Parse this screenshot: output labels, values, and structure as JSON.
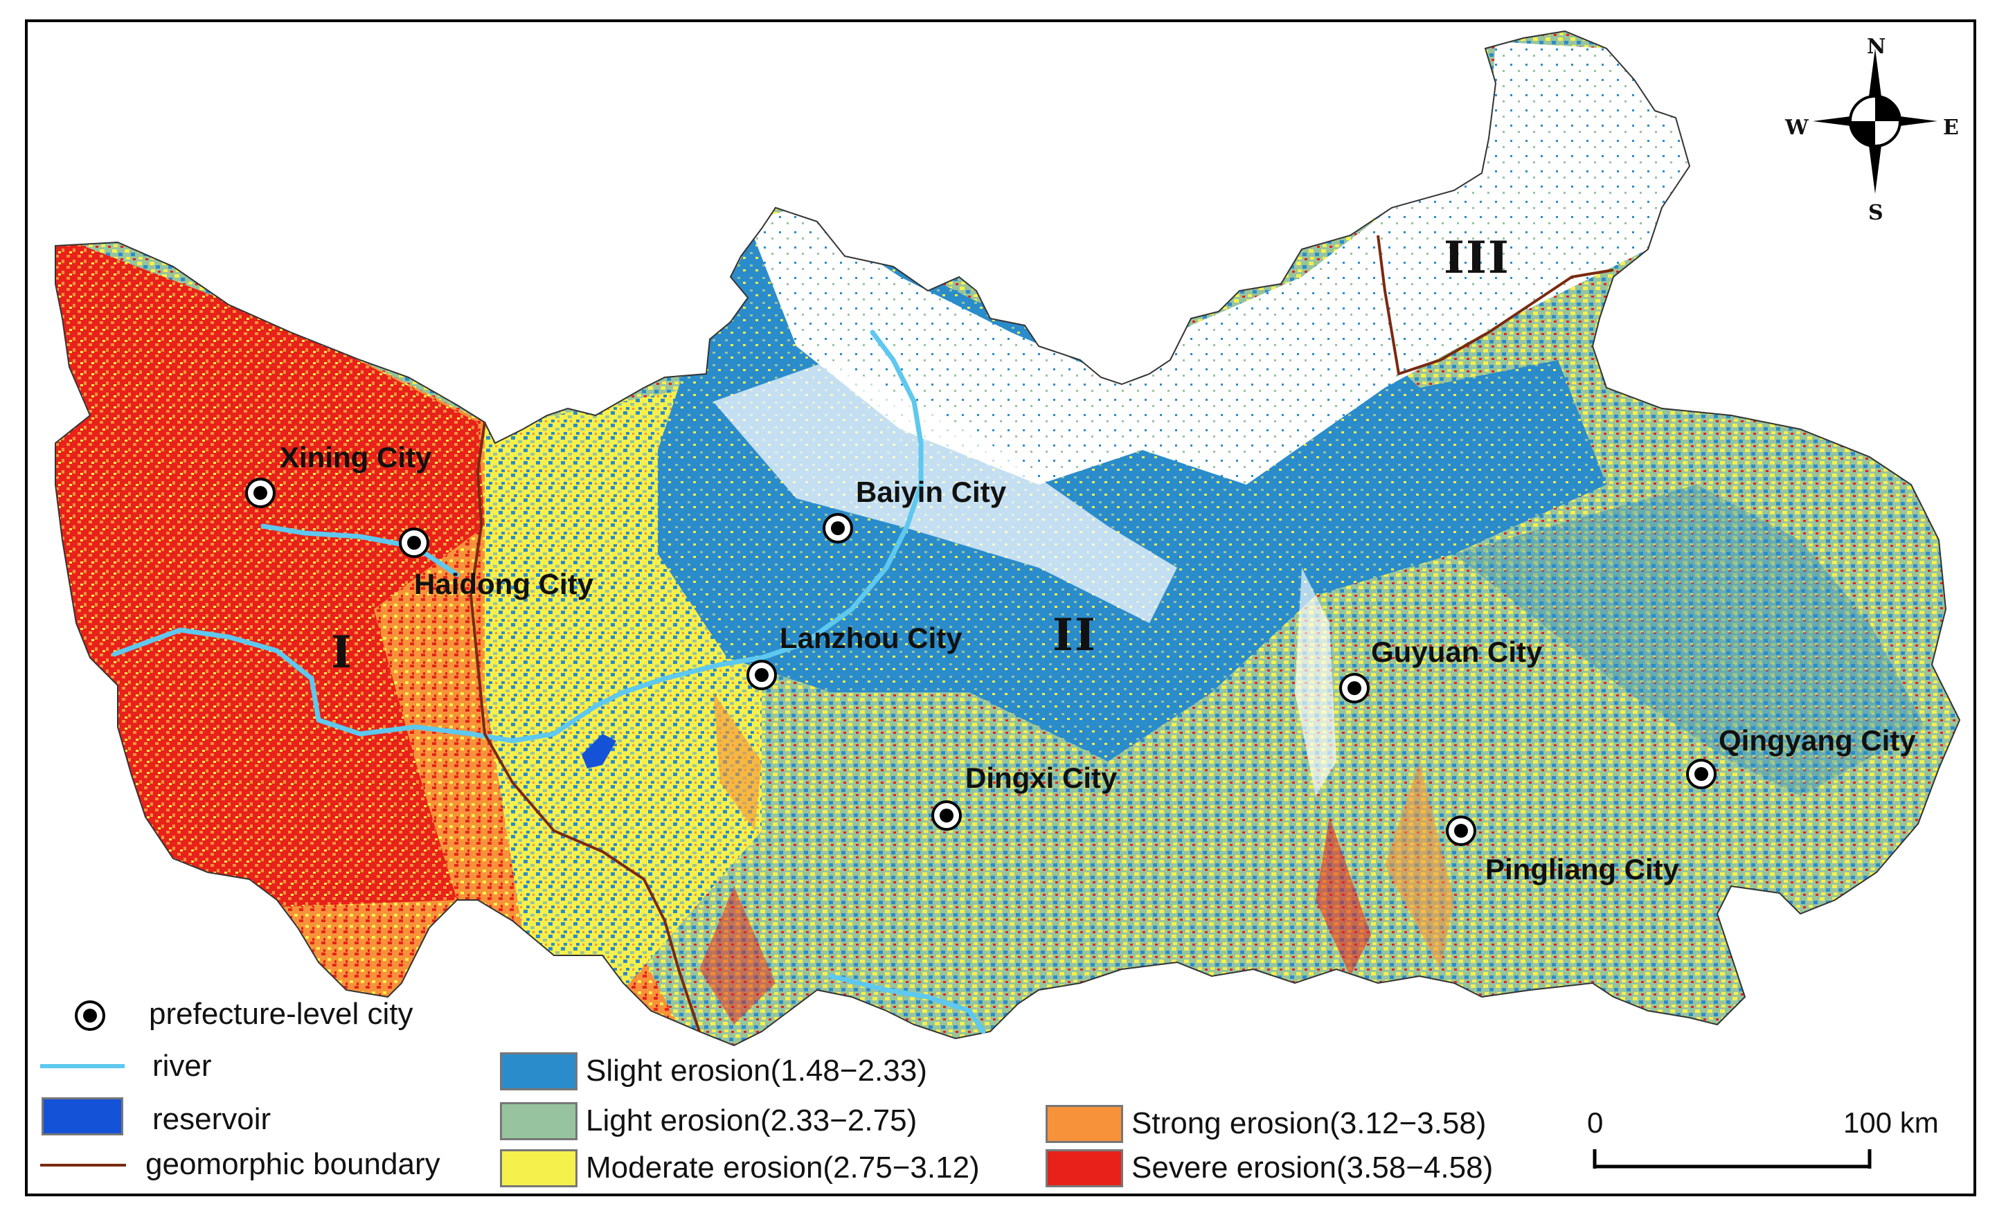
{
  "colors": {
    "slight": "#2b8ccb",
    "light": "#97c49e",
    "moderate": "#f6f04c",
    "strong": "#f7923a",
    "severe": "#e8211a",
    "river": "#5ec8ef",
    "reservoir": "#1452d8",
    "boundary": "#7a2a10"
  },
  "cities": [
    {
      "name": "Xining City"
    },
    {
      "name": "Haidong City"
    },
    {
      "name": "Baiyin City"
    },
    {
      "name": "Lanzhou City"
    },
    {
      "name": "Dingxi City"
    },
    {
      "name": "Guyuan City"
    },
    {
      "name": "Qingyang City"
    },
    {
      "name": "Pingliang City"
    }
  ],
  "zones": [
    "I",
    "II",
    "III"
  ],
  "compass": {
    "n": "N",
    "s": "S",
    "e": "E",
    "w": "W"
  },
  "legend": {
    "city": "prefecture-level city",
    "river": "river",
    "reservoir": "reservoir",
    "boundary": "geomorphic boundary",
    "slight": "Slight erosion(1.48−2.33)",
    "light": "Light erosion(2.33−2.75)",
    "moderate": "Moderate erosion(2.75−3.12)",
    "strong": "Strong erosion(3.12−3.58)",
    "severe": "Severe erosion(3.58−4.58)"
  },
  "scale_bar": {
    "start": "0",
    "end": "100 km"
  }
}
